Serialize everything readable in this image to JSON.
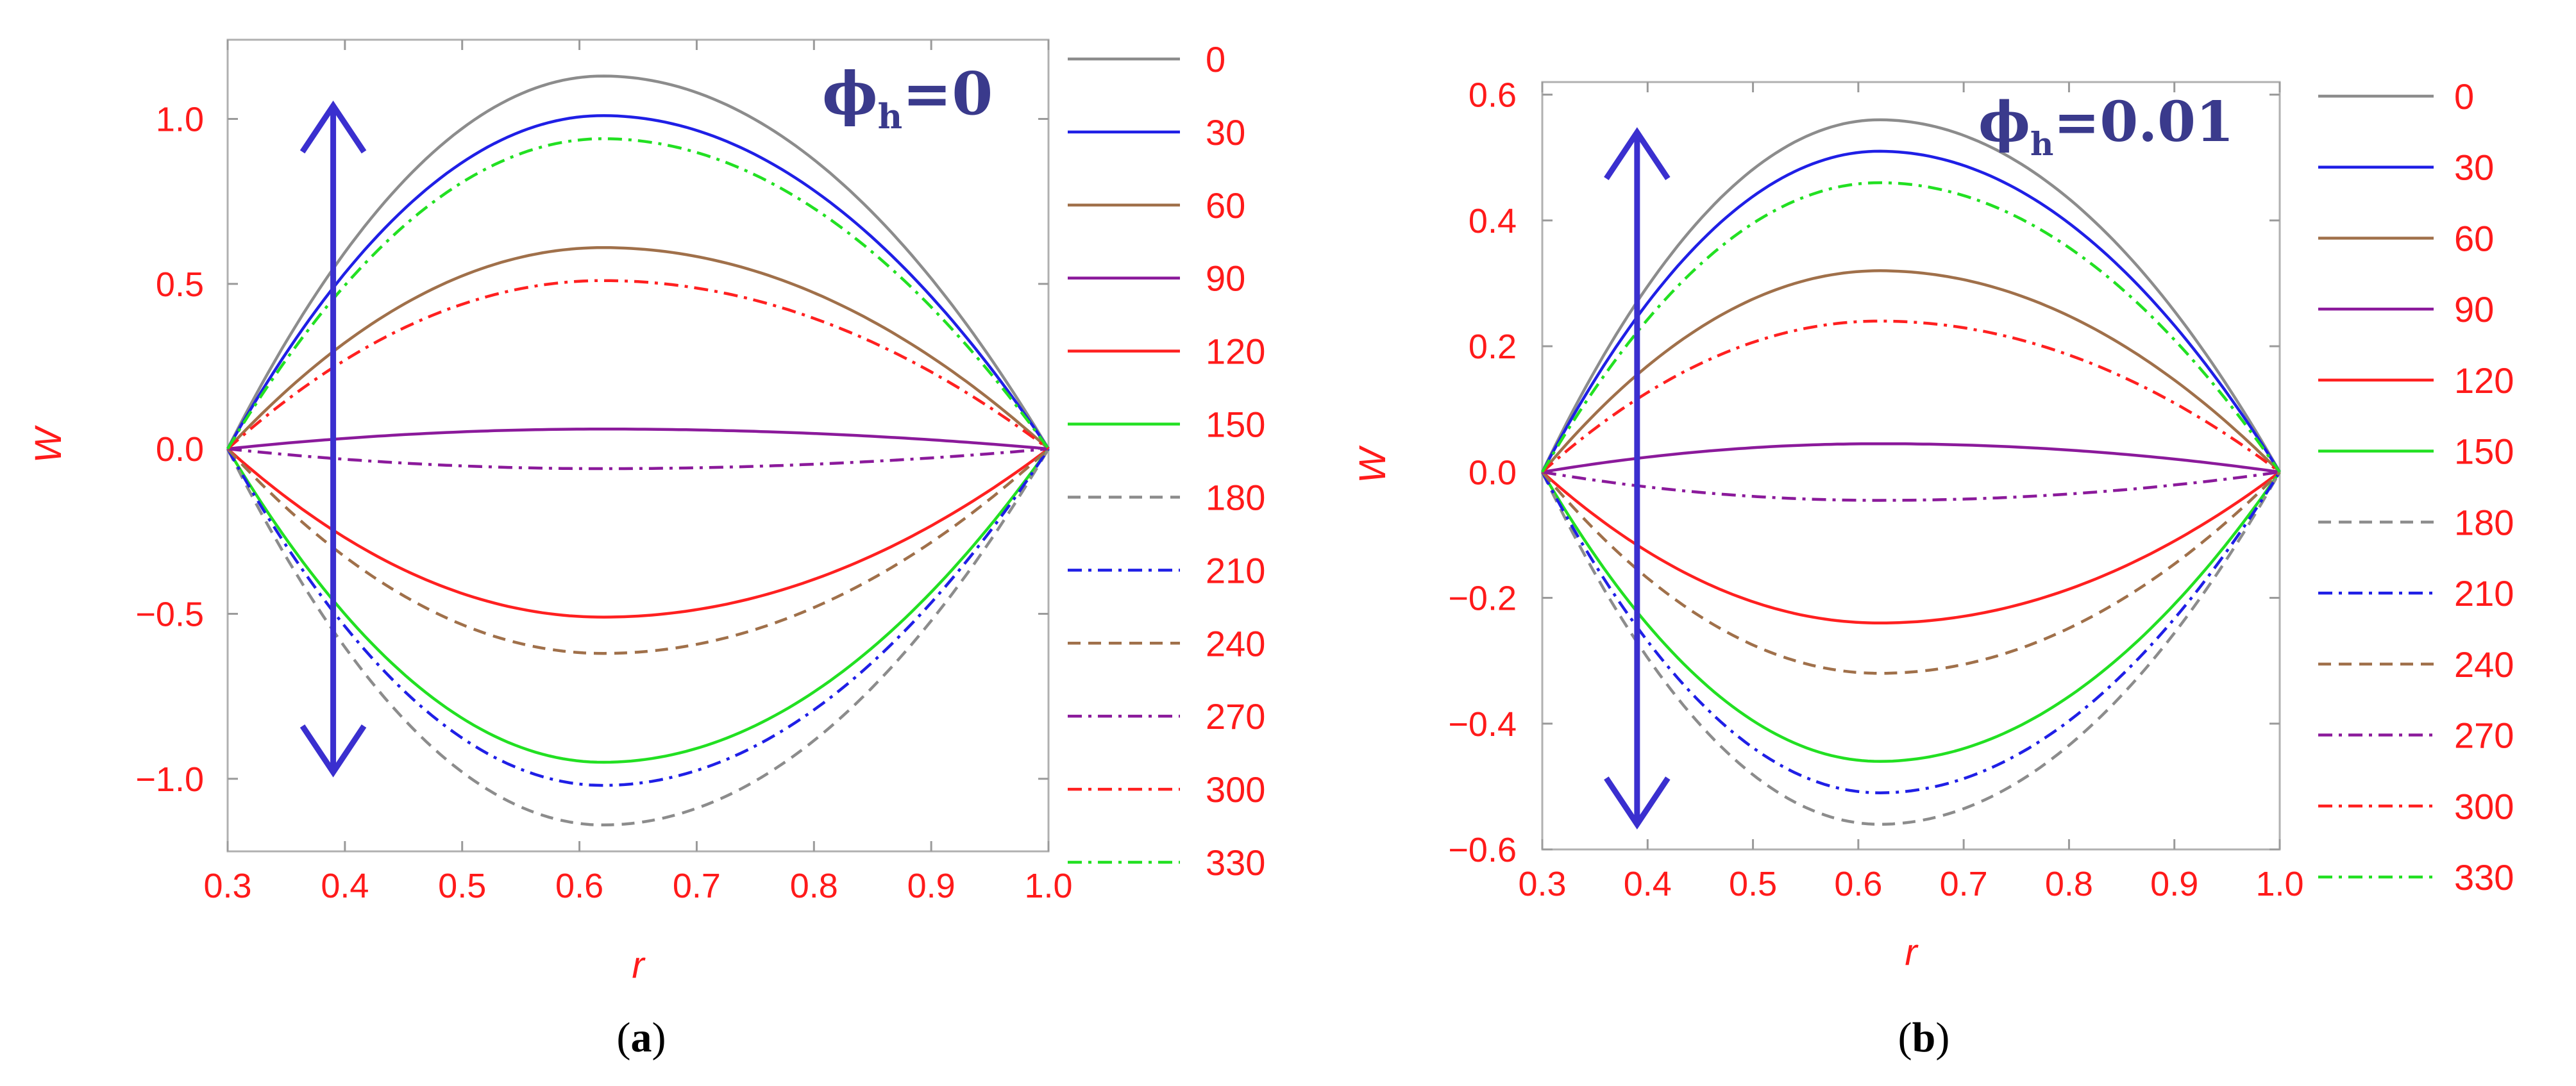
{
  "chart_data": [
    {
      "id": "a",
      "type": "line",
      "caption": "(a)",
      "caption_letter": "a",
      "xlabel": "r",
      "ylabel": "W",
      "annotation": {
        "symbol": "ϕ",
        "subscript": "h",
        "rest": "=0"
      },
      "xlim": [
        0.3,
        1.0
      ],
      "ylim": [
        -1.22,
        1.24
      ],
      "xticks": [
        0.3,
        0.4,
        0.5,
        0.6,
        0.7,
        0.8,
        0.9,
        1.0
      ],
      "xtick_labels": [
        "0.3",
        "0.4",
        "0.5",
        "0.6",
        "0.7",
        "0.8",
        "0.9",
        "1.0"
      ],
      "yticks": [
        -1.0,
        -0.5,
        0.0,
        0.5,
        1.0
      ],
      "ytick_labels": [
        "−1.0",
        "−0.5",
        "0.0",
        "0.5",
        "1.0"
      ],
      "curve_peak_r": 0.62,
      "arrow": {
        "r": 0.39,
        "from": -0.98,
        "to": 1.04
      },
      "series": [
        {
          "name": "0",
          "color": "#8c8c8c",
          "dash": "solid",
          "amplitude": 1.13
        },
        {
          "name": "30",
          "color": "#1f1fe6",
          "dash": "solid",
          "amplitude": 1.01
        },
        {
          "name": "60",
          "color": "#a0704a",
          "dash": "solid",
          "amplitude": 0.61
        },
        {
          "name": "90",
          "color": "#8b1a9b",
          "dash": "solid",
          "amplitude": 0.06
        },
        {
          "name": "120",
          "color": "#ff2020",
          "dash": "solid",
          "amplitude": -0.51
        },
        {
          "name": "150",
          "color": "#22e022",
          "dash": "solid",
          "amplitude": -0.95
        },
        {
          "name": "180",
          "color": "#8c8c8c",
          "dash": "dashed",
          "amplitude": -1.14
        },
        {
          "name": "210",
          "color": "#1f1fe6",
          "dash": "dashdot",
          "amplitude": -1.02
        },
        {
          "name": "240",
          "color": "#a0704a",
          "dash": "dashed",
          "amplitude": -0.62
        },
        {
          "name": "270",
          "color": "#8b1a9b",
          "dash": "dashdot",
          "amplitude": -0.06
        },
        {
          "name": "300",
          "color": "#ff2020",
          "dash": "dashdot",
          "amplitude": 0.51
        },
        {
          "name": "330",
          "color": "#22e022",
          "dash": "dashdot",
          "amplitude": 0.94
        }
      ]
    },
    {
      "id": "b",
      "type": "line",
      "caption": "(b)",
      "caption_letter": "b",
      "xlabel": "r",
      "ylabel": "W",
      "annotation": {
        "symbol": "ϕ",
        "subscript": "h",
        "rest": "=0.01"
      },
      "xlim": [
        0.3,
        1.0
      ],
      "ylim": [
        -0.6,
        0.62
      ],
      "xticks": [
        0.3,
        0.4,
        0.5,
        0.6,
        0.7,
        0.8,
        0.9,
        1.0
      ],
      "xtick_labels": [
        "0.3",
        "0.4",
        "0.5",
        "0.6",
        "0.7",
        "0.8",
        "0.9",
        "1.0"
      ],
      "yticks": [
        -0.6,
        -0.4,
        -0.2,
        0.0,
        0.2,
        0.4,
        0.6
      ],
      "ytick_labels": [
        "−0.6",
        "−0.4",
        "−0.2",
        "0.0",
        "0.2",
        "0.4",
        "0.6"
      ],
      "curve_peak_r": 0.62,
      "arrow": {
        "r": 0.39,
        "from": -0.56,
        "to": 0.54
      },
      "series": [
        {
          "name": "0",
          "color": "#8c8c8c",
          "dash": "solid",
          "amplitude": 0.56
        },
        {
          "name": "30",
          "color": "#1f1fe6",
          "dash": "solid",
          "amplitude": 0.51
        },
        {
          "name": "60",
          "color": "#a0704a",
          "dash": "solid",
          "amplitude": 0.32
        },
        {
          "name": "90",
          "color": "#8b1a9b",
          "dash": "solid",
          "amplitude": 0.045
        },
        {
          "name": "120",
          "color": "#ff2020",
          "dash": "solid",
          "amplitude": -0.24
        },
        {
          "name": "150",
          "color": "#22e022",
          "dash": "solid",
          "amplitude": -0.46
        },
        {
          "name": "180",
          "color": "#8c8c8c",
          "dash": "dashed",
          "amplitude": -0.56
        },
        {
          "name": "210",
          "color": "#1f1fe6",
          "dash": "dashdot",
          "amplitude": -0.51
        },
        {
          "name": "240",
          "color": "#a0704a",
          "dash": "dashed",
          "amplitude": -0.32
        },
        {
          "name": "270",
          "color": "#8b1a9b",
          "dash": "dashdot",
          "amplitude": -0.045
        },
        {
          "name": "300",
          "color": "#ff2020",
          "dash": "dashdot",
          "amplitude": 0.24
        },
        {
          "name": "330",
          "color": "#22e022",
          "dash": "dashdot",
          "amplitude": 0.46
        }
      ]
    }
  ]
}
